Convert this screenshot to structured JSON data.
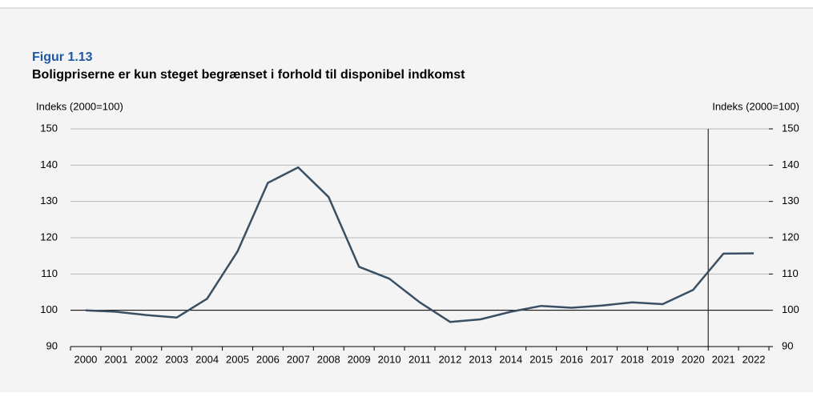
{
  "chart_data": {
    "type": "line",
    "figure_label": "Figur 1.13",
    "title": "Boligpriserne er kun steget begrænset i forhold til disponibel indkomst",
    "ylabel": "Indeks (2000=100)",
    "y2label": "Indeks (2000=100)",
    "categories": [
      "2000",
      "2001",
      "2002",
      "2003",
      "2004",
      "2005",
      "2006",
      "2007",
      "2008",
      "2009",
      "2010",
      "2011",
      "2012",
      "2013",
      "2014",
      "2015",
      "2016",
      "2017",
      "2018",
      "2019",
      "2020",
      "2021",
      "2022"
    ],
    "series": [
      {
        "color": "#3b4f63",
        "values": [
          100,
          99.6,
          98.7,
          98.0,
          103.2,
          116.2,
          135.1,
          139.4,
          131.2,
          112.0,
          108.7,
          102.2,
          96.8,
          97.5,
          99.6,
          101.2,
          100.7,
          101.3,
          102.2,
          101.7,
          105.6,
          115.6,
          115.7
        ]
      }
    ],
    "ylim": [
      90,
      150
    ],
    "yticks": [
      90,
      100,
      110,
      120,
      130,
      140,
      150
    ],
    "y2lim": [
      90,
      150
    ],
    "y2ticks": [
      90,
      100,
      110,
      120,
      130,
      140,
      150
    ],
    "grid": true,
    "reference_line": 100,
    "vline_after_category": "2020"
  }
}
